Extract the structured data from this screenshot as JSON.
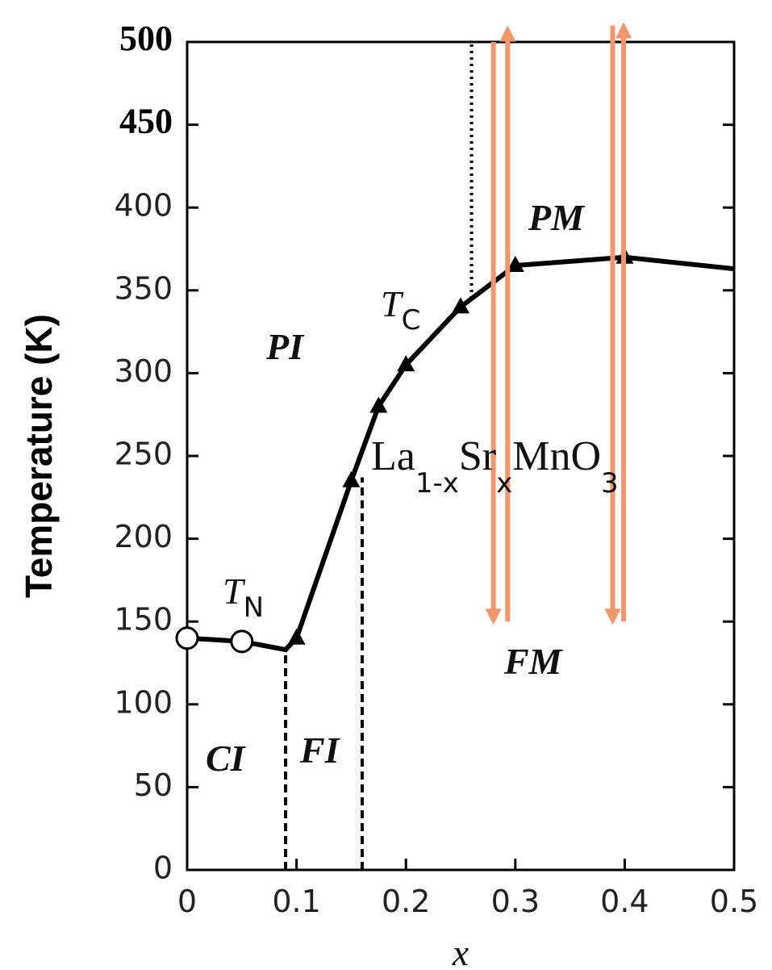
{
  "chart_data": {
    "type": "line",
    "ylabel": "Temperature (K)",
    "xlabel": "x",
    "xlim": [
      0,
      0.5
    ],
    "ylim": [
      0,
      500
    ],
    "xticks": [
      0,
      0.1,
      0.2,
      0.3,
      0.4,
      0.5
    ],
    "yticks": [
      0,
      50,
      100,
      150,
      200,
      250,
      300,
      350,
      400,
      450,
      500
    ],
    "line": {
      "color": "#000000",
      "x": [
        0,
        0.05,
        0.09,
        0.1,
        0.15,
        0.175,
        0.2,
        0.25,
        0.3,
        0.4,
        0.5
      ],
      "values": [
        140,
        138,
        133,
        140,
        235,
        280,
        305,
        340,
        365,
        370,
        363
      ]
    },
    "series": [
      {
        "marker": "circle",
        "x": [
          0,
          0.05
        ],
        "values": [
          140,
          138
        ]
      },
      {
        "marker": "triangle",
        "x": [
          0.1,
          0.15,
          0.175,
          0.2,
          0.25,
          0.3,
          0.4
        ],
        "values": [
          140,
          235,
          280,
          305,
          340,
          365,
          370
        ]
      }
    ],
    "boundaries": [
      {
        "x": 0.09,
        "y": [
          0,
          133
        ],
        "style": "dashed"
      },
      {
        "x": 0.16,
        "y": [
          0,
          237
        ],
        "style": "dashed"
      },
      {
        "x": 0.26,
        "y": [
          345,
          500
        ],
        "style": "dotted"
      }
    ],
    "arrows": {
      "color": "#f4956a",
      "items": [
        {
          "x": 0.28,
          "from": 500,
          "to": 148
        },
        {
          "x": 0.293,
          "from": 150,
          "to": 510
        },
        {
          "x": 0.389,
          "from": 510,
          "to": 148
        },
        {
          "x": 0.399,
          "from": 150,
          "to": 512
        }
      ]
    },
    "annotations": [
      {
        "text": "T",
        "sub": "C"
      },
      {
        "text": "T",
        "sub": "N"
      },
      {
        "text": "PI"
      },
      {
        "text": "PM"
      },
      {
        "text": "FM"
      },
      {
        "text": "CI"
      },
      {
        "text": "FI"
      }
    ],
    "formula": [
      "La",
      "1-x",
      "Sr",
      "x",
      "MnO",
      "3"
    ]
  }
}
